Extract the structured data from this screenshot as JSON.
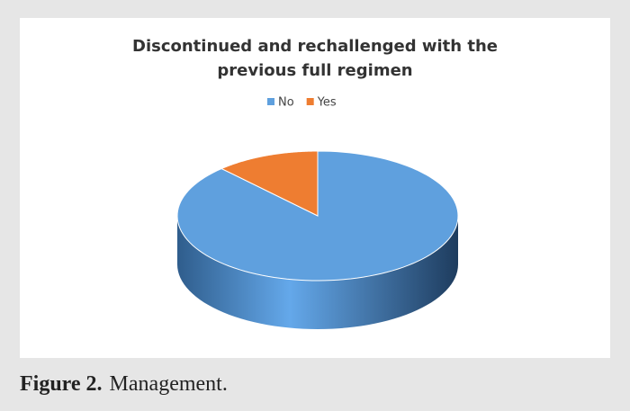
{
  "chart_data": {
    "type": "pie3d",
    "title": "Discontinued and rechallenged with the previous full regimen",
    "categories": [
      "No",
      "Yes"
    ],
    "values": [
      88,
      12
    ],
    "colors": [
      "#5fa0de",
      "#ee7d31"
    ],
    "legend": "top"
  },
  "caption": {
    "label": "Figure 2.",
    "text": "Management."
  }
}
